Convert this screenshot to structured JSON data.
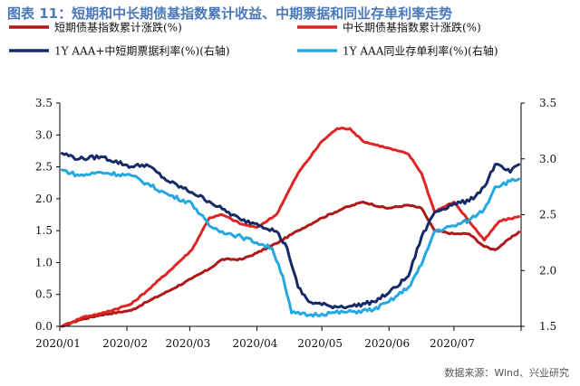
{
  "title": "图表 11：短期和中长期债基指数累计收益、中期票据和同业存单利率走势",
  "source": "数据来源：Wind、兴业研究",
  "chart_data": {
    "type": "line",
    "x_tick_labels": [
      "2020/01",
      "2020/02",
      "2020/03",
      "2020/04",
      "2020/05",
      "2020/06",
      "2020/07"
    ],
    "left_axis": {
      "ylim": [
        0,
        3.5
      ],
      "ticks": [
        "0.0",
        "0.5",
        "1.0",
        "1.5",
        "2.0",
        "2.5",
        "3.0",
        "3.5"
      ]
    },
    "right_axis": {
      "ylim": [
        1.5,
        3.5
      ],
      "ticks": [
        "1.5",
        "2.0",
        "2.5",
        "3.0",
        "3.5"
      ]
    },
    "legend_position": "top",
    "series": [
      {
        "name": "短期债基指数累计涨跌(%)",
        "axis": "left",
        "color": "#b01818",
        "points": [
          [
            "2020-01-02",
            0.0
          ],
          [
            "2020-01-10",
            0.1
          ],
          [
            "2020-01-20",
            0.18
          ],
          [
            "2020-02-03",
            0.25
          ],
          [
            "2020-02-10",
            0.38
          ],
          [
            "2020-02-20",
            0.55
          ],
          [
            "2020-03-02",
            0.75
          ],
          [
            "2020-03-10",
            0.9
          ],
          [
            "2020-03-16",
            1.05
          ],
          [
            "2020-03-25",
            1.05
          ],
          [
            "2020-04-01",
            1.15
          ],
          [
            "2020-04-10",
            1.3
          ],
          [
            "2020-04-20",
            1.5
          ],
          [
            "2020-05-01",
            1.7
          ],
          [
            "2020-05-11",
            1.85
          ],
          [
            "2020-05-20",
            1.95
          ],
          [
            "2020-05-31",
            1.85
          ],
          [
            "2020-06-10",
            1.9
          ],
          [
            "2020-06-16",
            1.85
          ],
          [
            "2020-06-22",
            1.5
          ],
          [
            "2020-07-01",
            1.45
          ],
          [
            "2020-07-08",
            1.45
          ],
          [
            "2020-07-15",
            1.25
          ],
          [
            "2020-07-20",
            1.2
          ],
          [
            "2020-07-31",
            1.48
          ]
        ]
      },
      {
        "name": "中长期债基指数累计涨跌(%)",
        "axis": "left",
        "color": "#e02424",
        "points": [
          [
            "2020-01-02",
            0.0
          ],
          [
            "2020-01-12",
            0.15
          ],
          [
            "2020-01-20",
            0.2
          ],
          [
            "2020-02-03",
            0.35
          ],
          [
            "2020-02-10",
            0.55
          ],
          [
            "2020-02-20",
            0.85
          ],
          [
            "2020-03-02",
            1.2
          ],
          [
            "2020-03-10",
            1.7
          ],
          [
            "2020-03-16",
            1.75
          ],
          [
            "2020-03-25",
            1.6
          ],
          [
            "2020-04-01",
            1.55
          ],
          [
            "2020-04-10",
            1.75
          ],
          [
            "2020-04-20",
            2.4
          ],
          [
            "2020-05-01",
            2.9
          ],
          [
            "2020-05-08",
            3.1
          ],
          [
            "2020-05-14",
            3.1
          ],
          [
            "2020-05-20",
            2.9
          ],
          [
            "2020-05-31",
            2.8
          ],
          [
            "2020-06-10",
            2.7
          ],
          [
            "2020-06-16",
            2.4
          ],
          [
            "2020-06-22",
            1.8
          ],
          [
            "2020-07-01",
            1.95
          ],
          [
            "2020-07-08",
            1.65
          ],
          [
            "2020-07-15",
            1.35
          ],
          [
            "2020-07-22",
            1.65
          ],
          [
            "2020-07-31",
            1.72
          ]
        ]
      },
      {
        "name": "1Y AAA+中短期票据利率(%)(右轴)",
        "axis": "right",
        "color": "#152a66",
        "points": [
          [
            "2020-01-02",
            3.05
          ],
          [
            "2020-01-10",
            3.0
          ],
          [
            "2020-01-20",
            3.02
          ],
          [
            "2020-02-03",
            2.93
          ],
          [
            "2020-02-10",
            2.95
          ],
          [
            "2020-02-20",
            2.8
          ],
          [
            "2020-03-02",
            2.7
          ],
          [
            "2020-03-10",
            2.62
          ],
          [
            "2020-03-16",
            2.55
          ],
          [
            "2020-03-25",
            2.45
          ],
          [
            "2020-04-01",
            2.42
          ],
          [
            "2020-04-10",
            2.35
          ],
          [
            "2020-04-15",
            2.2
          ],
          [
            "2020-04-20",
            1.85
          ],
          [
            "2020-04-25",
            1.72
          ],
          [
            "2020-05-05",
            1.68
          ],
          [
            "2020-05-15",
            1.68
          ],
          [
            "2020-05-25",
            1.72
          ],
          [
            "2020-06-01",
            1.8
          ],
          [
            "2020-06-10",
            1.95
          ],
          [
            "2020-06-16",
            2.3
          ],
          [
            "2020-06-22",
            2.52
          ],
          [
            "2020-07-01",
            2.6
          ],
          [
            "2020-07-08",
            2.62
          ],
          [
            "2020-07-15",
            2.75
          ],
          [
            "2020-07-20",
            2.95
          ],
          [
            "2020-07-27",
            2.88
          ],
          [
            "2020-07-31",
            2.95
          ]
        ]
      },
      {
        "name": "1Y AAA同业存单利率(%)(右轴)",
        "axis": "right",
        "color": "#23a8e0",
        "points": [
          [
            "2020-01-02",
            2.9
          ],
          [
            "2020-01-10",
            2.85
          ],
          [
            "2020-01-20",
            2.88
          ],
          [
            "2020-02-03",
            2.85
          ],
          [
            "2020-02-10",
            2.78
          ],
          [
            "2020-02-20",
            2.68
          ],
          [
            "2020-03-02",
            2.6
          ],
          [
            "2020-03-10",
            2.4
          ],
          [
            "2020-03-16",
            2.35
          ],
          [
            "2020-03-25",
            2.3
          ],
          [
            "2020-04-01",
            2.25
          ],
          [
            "2020-04-08",
            2.2
          ],
          [
            "2020-04-13",
            1.95
          ],
          [
            "2020-04-17",
            1.62
          ],
          [
            "2020-04-25",
            1.6
          ],
          [
            "2020-05-05",
            1.62
          ],
          [
            "2020-05-15",
            1.63
          ],
          [
            "2020-05-25",
            1.65
          ],
          [
            "2020-06-01",
            1.72
          ],
          [
            "2020-06-10",
            1.85
          ],
          [
            "2020-06-16",
            2.05
          ],
          [
            "2020-06-22",
            2.35
          ],
          [
            "2020-07-01",
            2.4
          ],
          [
            "2020-07-08",
            2.45
          ],
          [
            "2020-07-15",
            2.55
          ],
          [
            "2020-07-20",
            2.75
          ],
          [
            "2020-07-27",
            2.8
          ],
          [
            "2020-07-31",
            2.82
          ]
        ]
      }
    ]
  }
}
